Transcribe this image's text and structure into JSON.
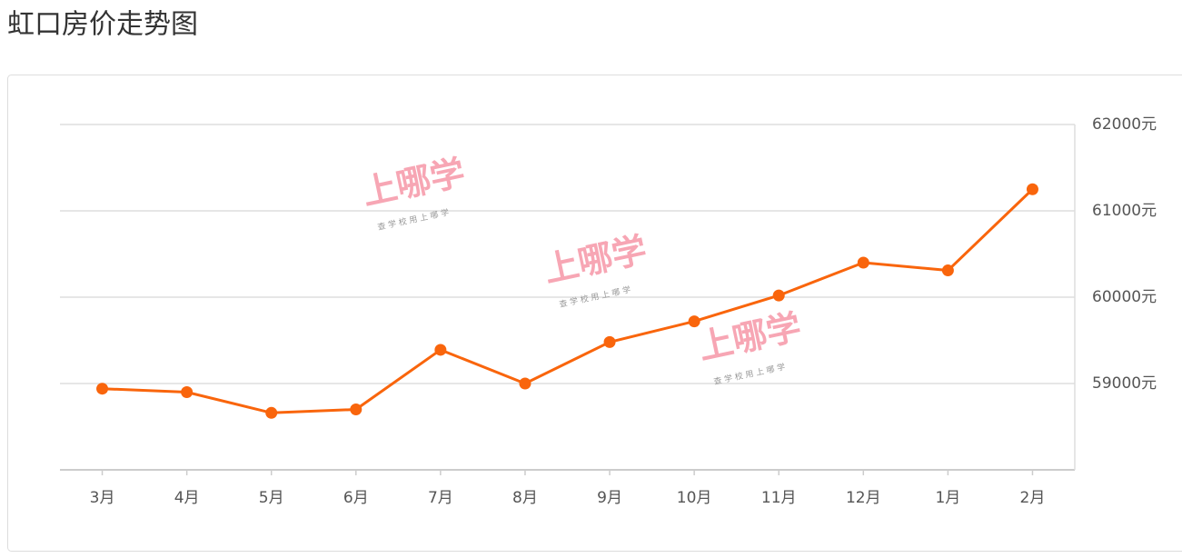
{
  "chart_data": {
    "type": "line",
    "title": "虹口房价走势图",
    "categories": [
      "3月",
      "4月",
      "5月",
      "6月",
      "7月",
      "8月",
      "9月",
      "10月",
      "11月",
      "12月",
      "1月",
      "2月"
    ],
    "series": [
      {
        "color": "#f9650c",
        "values": [
          58940,
          58900,
          58660,
          58700,
          59390,
          59000,
          59480,
          59720,
          60020,
          60400,
          60310,
          61250
        ]
      }
    ],
    "ylim": [
      58000,
      62000
    ],
    "yticks": [
      {
        "value": 59000,
        "label": "59000元"
      },
      {
        "value": 60000,
        "label": "60000元"
      },
      {
        "value": 61000,
        "label": "61000元"
      },
      {
        "value": 62000,
        "label": "62000元"
      }
    ],
    "grid": true,
    "watermark": {
      "brand": "上哪学",
      "slogan": "查 学 校   用 上 哪 学"
    }
  }
}
